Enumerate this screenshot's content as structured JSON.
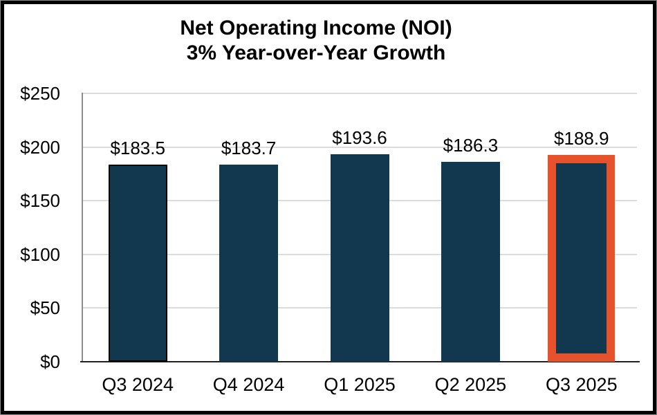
{
  "header": {
    "title_line1": "Net Operating Income (NOI)",
    "title_line2": "3% Year-over-Year Growth"
  },
  "chart_data": {
    "type": "bar",
    "title": "Net Operating Income (NOI)",
    "subtitle": "3% Year-over-Year Growth",
    "categories": [
      "Q3 2024",
      "Q4 2024",
      "Q1 2025",
      "Q2 2025",
      "Q3 2025"
    ],
    "values": [
      183.5,
      183.7,
      193.6,
      186.3,
      188.9
    ],
    "value_labels": [
      "$183.5",
      "$183.7",
      "$193.6",
      "$186.3",
      "$188.9"
    ],
    "xlabel": "",
    "ylabel": "",
    "ylim": [
      0,
      250
    ],
    "ytick_step": 50,
    "ytick_labels": [
      "$0",
      "$50",
      "$100",
      "$150",
      "$200",
      "$250"
    ],
    "grid": "horizontal",
    "legend": "none",
    "outlined_category": "Q3 2024",
    "highlighted_category": "Q3 2025",
    "colors": {
      "bar_fill": "#11384F",
      "outline_black": "#000000",
      "highlight_outline": "#E6522B",
      "gridline": "#DBDBDB",
      "y_axis_line": "#8C8C8C",
      "x_axis_line": "#1F1F1F",
      "text": "#000000"
    }
  }
}
